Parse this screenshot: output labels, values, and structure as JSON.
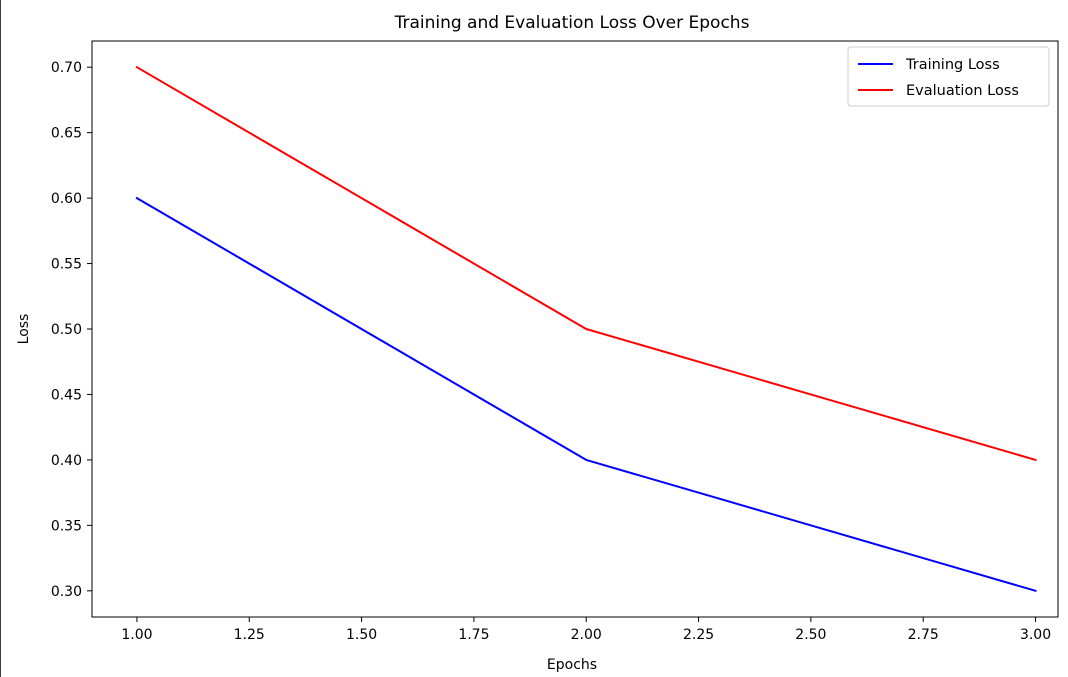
{
  "chart_data": {
    "type": "line",
    "title": "Training and Evaluation Loss Over Epochs",
    "xlabel": "Epochs",
    "ylabel": "Loss",
    "xlim": [
      0.9,
      3.05
    ],
    "ylim": [
      0.28,
      0.72
    ],
    "x_ticks": [
      {
        "value": 1.0,
        "label": "1.00"
      },
      {
        "value": 1.25,
        "label": "1.25"
      },
      {
        "value": 1.5,
        "label": "1.50"
      },
      {
        "value": 1.75,
        "label": "1.75"
      },
      {
        "value": 2.0,
        "label": "2.00"
      },
      {
        "value": 2.25,
        "label": "2.25"
      },
      {
        "value": 2.5,
        "label": "2.50"
      },
      {
        "value": 2.75,
        "label": "2.75"
      },
      {
        "value": 3.0,
        "label": "3.00"
      }
    ],
    "y_ticks": [
      {
        "value": 0.3,
        "label": "0.30"
      },
      {
        "value": 0.35,
        "label": "0.35"
      },
      {
        "value": 0.4,
        "label": "0.40"
      },
      {
        "value": 0.45,
        "label": "0.45"
      },
      {
        "value": 0.5,
        "label": "0.50"
      },
      {
        "value": 0.55,
        "label": "0.55"
      },
      {
        "value": 0.6,
        "label": "0.60"
      },
      {
        "value": 0.65,
        "label": "0.65"
      },
      {
        "value": 0.7,
        "label": "0.70"
      }
    ],
    "x": [
      1,
      2,
      3
    ],
    "series": [
      {
        "name": "Training Loss",
        "color": "#0000ff",
        "values": [
          0.6,
          0.4,
          0.3
        ]
      },
      {
        "name": "Evaluation Loss",
        "color": "#ff0000",
        "values": [
          0.7,
          0.5,
          0.4
        ]
      }
    ],
    "grid": false,
    "legend_position": "top-right"
  }
}
